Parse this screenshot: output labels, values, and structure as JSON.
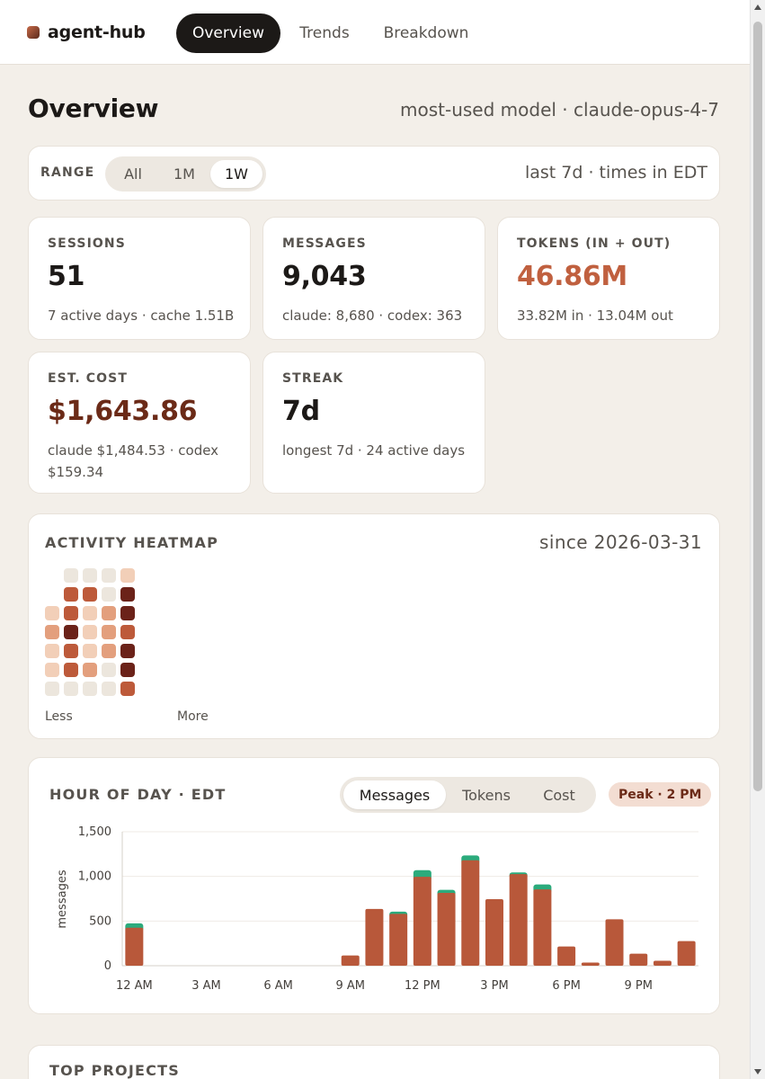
{
  "app": {
    "name": "agent-hub"
  },
  "nav": {
    "tabs": [
      {
        "label": "Overview",
        "active": true
      },
      {
        "label": "Trends",
        "active": false
      },
      {
        "label": "Breakdown",
        "active": false
      }
    ]
  },
  "page": {
    "title": "Overview",
    "model_note": "most-used model · claude-opus-4-7"
  },
  "range": {
    "label": "RANGE",
    "options": [
      {
        "label": "All",
        "active": false
      },
      {
        "label": "1M",
        "active": false
      },
      {
        "label": "1W",
        "active": true
      }
    ],
    "note": "last 7d · times in EDT"
  },
  "stats": {
    "sessions": {
      "label": "SESSIONS",
      "value": "51",
      "sub": "7 active days · cache 1.51B"
    },
    "messages": {
      "label": "MESSAGES",
      "value": "9,043",
      "sub": "claude: 8,680 · codex: 363"
    },
    "tokens": {
      "label": "TOKENS (IN + OUT)",
      "value": "46.86M",
      "sub": "33.82M in · 13.04M out"
    },
    "cost": {
      "label": "EST. COST",
      "value": "$1,643.86",
      "sub": "claude $1,484.53 · codex $159.34"
    },
    "streak": {
      "label": "STREAK",
      "value": "7d",
      "sub": "longest 7d · 24 active days"
    }
  },
  "colors": {
    "accent": "#c0603f",
    "cost": "#6b2a17",
    "bar_claude": "#b8583a",
    "bar_codex": "#2bab7c",
    "heat_levels": [
      "#ece6dd",
      "#f2cfb8",
      "#e39f7d",
      "#bd5a3a",
      "#6b2219"
    ]
  },
  "heatmap": {
    "title": "ACTIVITY HEATMAP",
    "since": "since 2026-03-31",
    "legend_less": "Less",
    "legend_more": "More",
    "weeks": [
      [
        null,
        null,
        1,
        2,
        1,
        1,
        0
      ],
      [
        0,
        3,
        3,
        4,
        3,
        3,
        0
      ],
      [
        0,
        3,
        1,
        1,
        1,
        2,
        0
      ],
      [
        0,
        0,
        2,
        2,
        2,
        0,
        0
      ],
      [
        1,
        4,
        4,
        3,
        4,
        4,
        3
      ]
    ]
  },
  "hour_chart": {
    "title": "HOUR OF DAY · EDT",
    "metrics": [
      {
        "label": "Messages",
        "active": true
      },
      {
        "label": "Tokens",
        "active": false
      },
      {
        "label": "Cost",
        "active": false
      }
    ],
    "peak_badge": "Peak · 2 PM"
  },
  "chart_data": {
    "type": "bar",
    "stacked": true,
    "ylabel": "messages",
    "ylim": [
      0,
      1500
    ],
    "yticks": [
      0,
      500,
      1000,
      1500
    ],
    "ytick_labels": [
      "0",
      "500",
      "1,000",
      "1,500"
    ],
    "x": [
      0,
      1,
      2,
      3,
      4,
      5,
      6,
      7,
      8,
      9,
      10,
      11,
      12,
      13,
      14,
      15,
      16,
      17,
      18,
      19,
      20,
      21,
      22,
      23
    ],
    "xtick_positions": [
      0,
      3,
      6,
      9,
      12,
      15,
      18,
      21
    ],
    "xtick_labels": [
      "12 AM",
      "3 AM",
      "6 AM",
      "9 AM",
      "12 PM",
      "3 PM",
      "6 PM",
      "9 PM"
    ],
    "grid": true,
    "series": [
      {
        "values": [
          425,
          0,
          0,
          0,
          0,
          0,
          0,
          0,
          0,
          115,
          635,
          580,
          995,
          815,
          1180,
          745,
          1025,
          855,
          215,
          35,
          520,
          135,
          55,
          275
        ]
      },
      {
        "values": [
          50,
          0,
          0,
          0,
          0,
          0,
          0,
          0,
          0,
          0,
          0,
          25,
          75,
          35,
          55,
          0,
          20,
          55,
          0,
          0,
          0,
          0,
          0,
          0
        ]
      }
    ]
  },
  "top_projects": {
    "title": "TOP PROJECTS"
  }
}
